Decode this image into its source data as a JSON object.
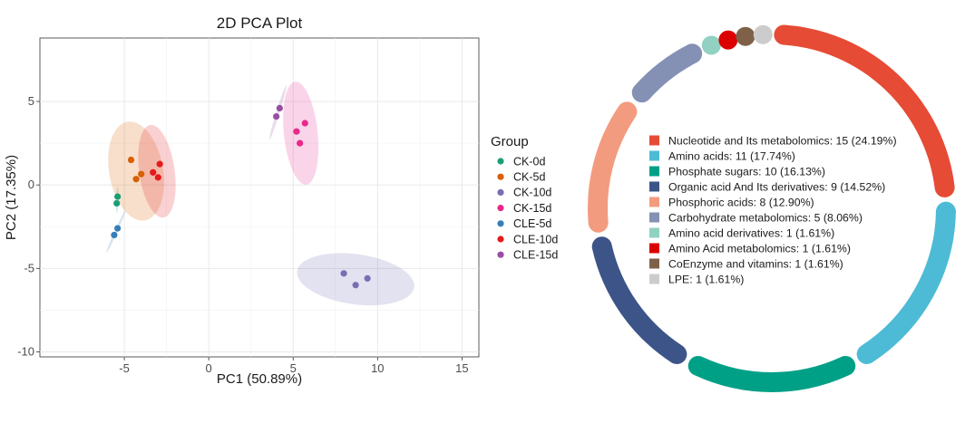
{
  "chart_data": [
    {
      "type": "scatter",
      "title": "2D PCA Plot",
      "xlabel": "PC1 (50.89%)",
      "ylabel": "PC2 (17.35%)",
      "xlim": [
        -10,
        16
      ],
      "ylim": [
        -10.3,
        8.8
      ],
      "xticks": [
        -5,
        0,
        5,
        10,
        15
      ],
      "yticks": [
        -10,
        -5,
        0,
        5
      ],
      "grid": true,
      "legend": {
        "title": "Group",
        "position": "right"
      },
      "series": [
        {
          "name": "CK-0d",
          "color": "#1b9e77",
          "points": [
            [
              -5.4,
              -0.7
            ],
            [
              -5.45,
              -1.1
            ]
          ],
          "ellipse": {
            "cx": -5.42,
            "cy": -0.9,
            "rx": 0.8,
            "ry": 0.07,
            "angle": 88
          }
        },
        {
          "name": "CK-5d",
          "color": "#d95f02",
          "points": [
            [
              -4.6,
              1.5
            ],
            [
              -4.3,
              0.35
            ],
            [
              -4.0,
              0.65
            ]
          ],
          "ellipse": {
            "cx": -4.3,
            "cy": 0.83,
            "rx": 3.0,
            "ry": 1.6,
            "angle": 100
          }
        },
        {
          "name": "CK-10d",
          "color": "#7570b3",
          "points": [
            [
              8.0,
              -5.3
            ],
            [
              8.7,
              -6.0
            ],
            [
              9.4,
              -5.6
            ]
          ],
          "ellipse": {
            "cx": 8.7,
            "cy": -5.65,
            "rx": 3.5,
            "ry": 1.5,
            "angle": -8
          }
        },
        {
          "name": "CK-15d",
          "color": "#e7298a",
          "points": [
            [
              5.2,
              3.2
            ],
            [
              5.4,
              2.5
            ],
            [
              5.7,
              3.7
            ]
          ],
          "ellipse": {
            "cx": 5.45,
            "cy": 3.1,
            "rx": 3.1,
            "ry": 1.0,
            "angle": -84
          }
        },
        {
          "name": "CLE-5d",
          "color": "#377eb8",
          "points": [
            [
              -5.4,
              -2.6
            ],
            [
              -5.6,
              -3.0
            ]
          ],
          "ellipse": {
            "cx": -5.5,
            "cy": -2.8,
            "rx": 1.4,
            "ry": 0.08,
            "angle": 66
          }
        },
        {
          "name": "CLE-10d",
          "color": "#e41a1c",
          "points": [
            [
              -3.0,
              0.45
            ],
            [
              -2.9,
              1.25
            ],
            [
              -3.3,
              0.75
            ]
          ],
          "ellipse": {
            "cx": -3.07,
            "cy": 0.82,
            "rx": 2.8,
            "ry": 1.05,
            "angle": -82
          }
        },
        {
          "name": "CLE-15d",
          "color": "#984ea3",
          "points": [
            [
              4.0,
              4.1
            ],
            [
              4.2,
              4.6
            ]
          ],
          "ellipse": {
            "cx": 4.1,
            "cy": 4.35,
            "rx": 1.7,
            "ry": 0.1,
            "angle": 73
          }
        }
      ]
    },
    {
      "type": "pie",
      "style": "ring",
      "categories": [
        "Nucleotide and Its metabolomics",
        "Amino acids",
        "Phosphate sugars",
        "Organic acid And Its derivatives",
        "Phosphoric acids",
        "Carbohydrate metabolomics",
        "Amino acid derivatives",
        "Amino Acid metabolomics",
        "CoEnzyme and vitamins",
        "LPE"
      ],
      "values": [
        15,
        11,
        10,
        9,
        8,
        5,
        1,
        1,
        1,
        1
      ],
      "labels": [
        "Nucleotide and Its metabolomics: 15 (24.19%)",
        "Amino acids: 11 (17.74%)",
        "Phosphate sugars: 10 (16.13%)",
        "Organic acid And Its derivatives: 9 (14.52%)",
        "Phosphoric acids: 8 (12.90%)",
        "Carbohydrate metabolomics: 5 (8.06%)",
        "Amino acid derivatives: 1 (1.61%)",
        "Amino Acid metabolomics: 1 (1.61%)",
        "CoEnzyme and vitamins: 1 (1.61%)",
        "LPE: 1 (1.61%)"
      ],
      "colors": [
        "#e64b35",
        "#4dbbd5",
        "#00a087",
        "#3c5488",
        "#f39b7f",
        "#8491b4",
        "#91d1c2",
        "#dc0000",
        "#7e6148",
        "#cccccc"
      ]
    }
  ]
}
